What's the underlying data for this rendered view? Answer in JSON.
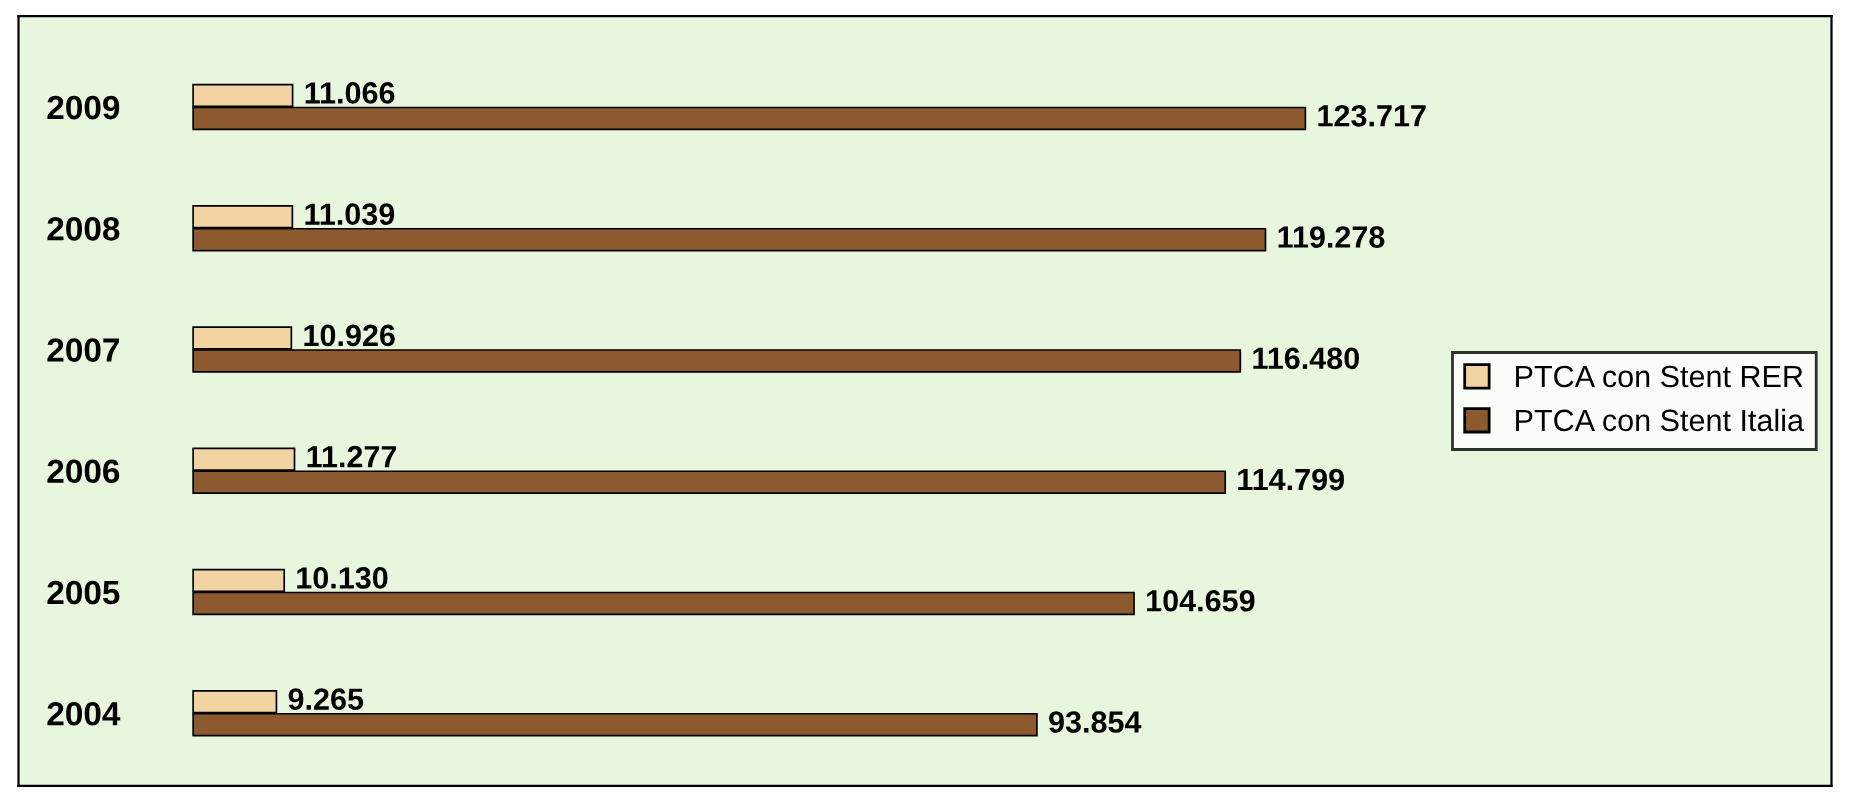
{
  "chart_data": {
    "type": "bar",
    "orientation": "horizontal",
    "categories": [
      "2009",
      "2008",
      "2007",
      "2006",
      "2005",
      "2004"
    ],
    "series": [
      {
        "name": "PTCA con Stent RER",
        "color": "#f2d3a2",
        "values": [
          11066,
          11039,
          10926,
          11277,
          10130,
          9265
        ],
        "value_labels": [
          "11.066",
          "11.039",
          "10.926",
          "11.277",
          "10.130",
          "9.265"
        ]
      },
      {
        "name": "PTCA con Stent Italia",
        "color": "#8c5a2e",
        "values": [
          123717,
          119278,
          116480,
          114799,
          104659,
          93854
        ],
        "value_labels": [
          "123.717",
          "119.278",
          "116.480",
          "114.799",
          "104.659",
          "93.854"
        ]
      }
    ],
    "legend": "right",
    "grid": false,
    "tick_labels": "y"
  }
}
